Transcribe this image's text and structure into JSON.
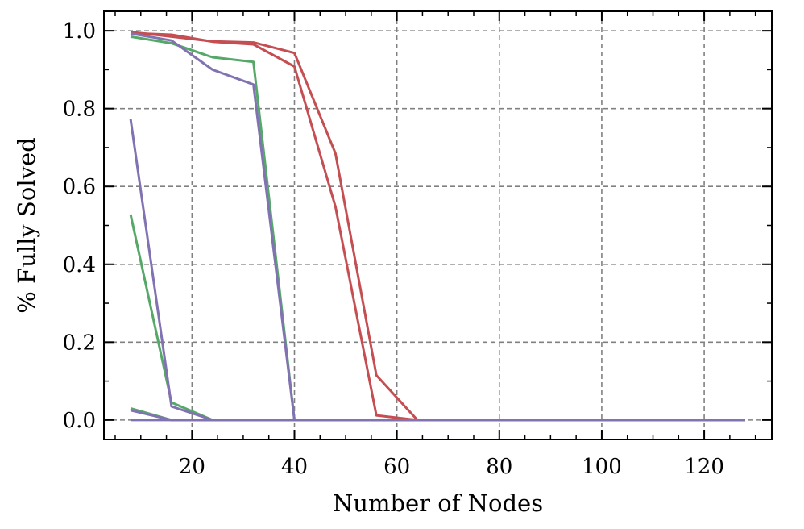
{
  "chart_data": {
    "type": "line",
    "xlabel": "Number of Nodes",
    "ylabel": "% Fully Solved",
    "xlim": [
      2.8,
      133.2
    ],
    "ylim": [
      -0.05,
      1.05
    ],
    "xticks": [
      20,
      40,
      60,
      80,
      100,
      120
    ],
    "yticks": [
      0.0,
      0.2,
      0.4,
      0.6,
      0.8,
      1.0
    ],
    "xtick_labels": [
      "20",
      "40",
      "60",
      "80",
      "100",
      "120"
    ],
    "ytick_labels": [
      "0.0",
      "0.2",
      "0.4",
      "0.6",
      "0.8",
      "1.0"
    ],
    "grid": true,
    "series": [
      {
        "color": "#c44e52",
        "x": [
          8,
          16,
          24,
          32,
          40,
          48,
          56,
          64,
          72,
          80,
          88,
          96,
          104,
          112,
          120,
          128
        ],
        "y": [
          0.997,
          0.985,
          0.973,
          0.97,
          0.943,
          0.685,
          0.115,
          0.0,
          0,
          0,
          0,
          0,
          0,
          0,
          0,
          0
        ]
      },
      {
        "color": "#c44e52",
        "x": [
          8,
          16,
          24,
          32,
          40,
          48,
          56,
          64,
          72,
          80,
          88,
          96,
          104,
          112,
          120,
          128
        ],
        "y": [
          0.994,
          0.99,
          0.972,
          0.965,
          0.908,
          0.548,
          0.012,
          0.0,
          0,
          0,
          0,
          0,
          0,
          0,
          0,
          0
        ]
      },
      {
        "color": "#55a868",
        "x": [
          8,
          16,
          24,
          32,
          40,
          48,
          56,
          64,
          72,
          80,
          88,
          96,
          104,
          112,
          120,
          128
        ],
        "y": [
          0.985,
          0.968,
          0.932,
          0.92,
          0.0,
          0,
          0,
          0,
          0,
          0,
          0,
          0,
          0,
          0,
          0,
          0
        ]
      },
      {
        "color": "#55a868",
        "x": [
          8,
          16,
          24,
          32,
          40,
          48,
          56,
          64,
          72,
          80,
          88,
          96,
          104,
          112,
          120,
          128
        ],
        "y": [
          0.528,
          0.045,
          0.0,
          0,
          0,
          0,
          0,
          0,
          0,
          0,
          0,
          0,
          0,
          0,
          0,
          0
        ]
      },
      {
        "color": "#55a868",
        "x": [
          8,
          16,
          24,
          32,
          40,
          48,
          56,
          64,
          72,
          80,
          88,
          96,
          104,
          112,
          120,
          128
        ],
        "y": [
          0.03,
          0.0,
          0,
          0,
          0,
          0,
          0,
          0,
          0,
          0,
          0,
          0,
          0,
          0,
          0,
          0
        ]
      },
      {
        "color": "#8172b2",
        "x": [
          8,
          16,
          24,
          32,
          40,
          48,
          56,
          64,
          72,
          80,
          88,
          96,
          104,
          112,
          120,
          128
        ],
        "y": [
          0.993,
          0.975,
          0.9,
          0.862,
          0.0,
          0,
          0,
          0,
          0,
          0,
          0,
          0,
          0,
          0,
          0,
          0
        ]
      },
      {
        "color": "#8172b2",
        "x": [
          8,
          16,
          24,
          32,
          40,
          48,
          56,
          64,
          72,
          80,
          88,
          96,
          104,
          112,
          120,
          128
        ],
        "y": [
          0.773,
          0.035,
          0.0,
          0,
          0,
          0,
          0,
          0,
          0,
          0,
          0,
          0,
          0,
          0,
          0,
          0
        ]
      },
      {
        "color": "#8172b2",
        "x": [
          8,
          16,
          24,
          32,
          40,
          48,
          56,
          64,
          72,
          80,
          88,
          96,
          104,
          112,
          120,
          128
        ],
        "y": [
          0.025,
          0.0,
          0,
          0,
          0,
          0,
          0,
          0,
          0,
          0,
          0,
          0,
          0,
          0,
          0,
          0
        ]
      },
      {
        "color": "#8172b2",
        "x": [
          8,
          16,
          24,
          32,
          40,
          48,
          56,
          64,
          72,
          80,
          88,
          96,
          104,
          112,
          120,
          128
        ],
        "y": [
          0,
          0,
          0,
          0,
          0,
          0,
          0,
          0,
          0,
          0,
          0,
          0,
          0,
          0,
          0,
          0
        ]
      }
    ]
  }
}
